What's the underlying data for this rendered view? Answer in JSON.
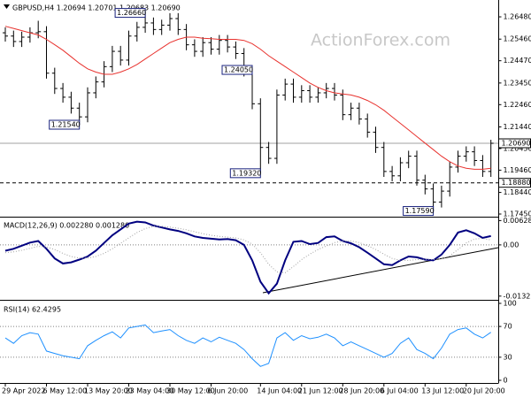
{
  "chart_data": [
    {
      "type": "ohlc",
      "title": "GBPUSD,H4 1.20694 1.20701 1.20683 1.20690",
      "watermark": "ActionForex.com",
      "color": "#000000",
      "open": [
        1.2575,
        1.256,
        1.2535,
        1.2555,
        1.2575,
        1.258,
        1.239,
        1.232,
        1.228,
        1.223,
        1.219,
        1.23,
        1.235,
        1.242,
        1.249,
        1.245,
        1.256,
        1.26,
        1.262,
        1.259,
        1.261,
        1.264,
        1.259,
        1.252,
        1.249,
        1.253,
        1.25,
        1.254,
        1.251,
        1.248,
        1.24,
        1.225,
        1.205,
        1.2,
        1.229,
        1.234,
        1.228,
        1.231,
        1.228,
        1.23,
        1.232,
        1.229,
        1.22,
        1.223,
        1.218,
        1.212,
        1.205,
        1.194,
        1.192,
        1.198,
        1.201,
        1.19,
        1.186,
        1.18,
        1.185,
        1.196,
        1.201,
        1.203,
        1.199,
        1.194
      ],
      "high": [
        1.26,
        1.2585,
        1.258,
        1.26,
        1.263,
        1.2605,
        1.2415,
        1.2345,
        1.2305,
        1.2255,
        1.2325,
        1.2375,
        1.2445,
        1.2515,
        1.2515,
        1.2585,
        1.2625,
        1.2666,
        1.2645,
        1.2635,
        1.2665,
        1.2665,
        1.2615,
        1.2545,
        1.2555,
        1.2555,
        1.2565,
        1.2565,
        1.2535,
        1.2505,
        1.2405,
        1.2275,
        1.2075,
        1.2315,
        1.2365,
        1.2365,
        1.2335,
        1.2335,
        1.2325,
        1.2345,
        1.2345,
        1.2315,
        1.2255,
        1.2255,
        1.2205,
        1.2145,
        1.2075,
        1.1965,
        1.2005,
        1.2035,
        1.2035,
        1.1925,
        1.1885,
        1.1875,
        1.1985,
        1.2035,
        1.2055,
        1.2055,
        1.2015,
        1.2085
      ],
      "low": [
        1.2535,
        1.251,
        1.251,
        1.253,
        1.255,
        1.2365,
        1.2295,
        1.2255,
        1.2205,
        1.2154,
        1.2165,
        1.2275,
        1.2325,
        1.2395,
        1.2425,
        1.2425,
        1.2535,
        1.2575,
        1.2565,
        1.2565,
        1.2585,
        1.2565,
        1.2495,
        1.2465,
        1.2465,
        1.2475,
        1.2475,
        1.2485,
        1.2455,
        1.2375,
        1.2225,
        1.1932,
        1.1975,
        1.1975,
        1.2265,
        1.2255,
        1.2255,
        1.2255,
        1.2255,
        1.2275,
        1.2265,
        1.2175,
        1.2175,
        1.2155,
        1.2095,
        1.2025,
        1.1915,
        1.1895,
        1.1895,
        1.1955,
        1.1875,
        1.1835,
        1.1759,
        1.1775,
        1.1825,
        1.1935,
        1.1985,
        1.1965,
        1.1915,
        1.1915
      ],
      "close": [
        1.256,
        1.2535,
        1.2555,
        1.2575,
        1.258,
        1.239,
        1.232,
        1.228,
        1.223,
        1.219,
        1.23,
        1.235,
        1.242,
        1.249,
        1.245,
        1.256,
        1.26,
        1.262,
        1.259,
        1.261,
        1.264,
        1.259,
        1.252,
        1.249,
        1.253,
        1.25,
        1.254,
        1.251,
        1.248,
        1.24,
        1.225,
        1.205,
        1.2,
        1.229,
        1.234,
        1.228,
        1.231,
        1.228,
        1.23,
        1.232,
        1.229,
        1.22,
        1.223,
        1.218,
        1.212,
        1.205,
        1.194,
        1.192,
        1.198,
        1.201,
        1.19,
        1.186,
        1.18,
        1.185,
        1.196,
        1.201,
        1.203,
        1.199,
        1.194,
        1.2069
      ],
      "overlays": [
        {
          "color": "#e8322e",
          "values": [
            1.2605,
            1.2595,
            1.2585,
            1.2575,
            1.2565,
            1.2545,
            1.252,
            1.2495,
            1.2465,
            1.2435,
            1.241,
            1.2395,
            1.2385,
            1.2385,
            1.2395,
            1.241,
            1.243,
            1.2455,
            1.248,
            1.2505,
            1.253,
            1.2545,
            1.2555,
            1.2555,
            1.255,
            1.2548,
            1.2545,
            1.2545,
            1.2545,
            1.254,
            1.2525,
            1.25,
            1.247,
            1.2445,
            1.242,
            1.2395,
            1.237,
            1.2345,
            1.2325,
            1.231,
            1.23,
            1.2295,
            1.229,
            1.228,
            1.2265,
            1.2245,
            1.222,
            1.219,
            1.216,
            1.213,
            1.21,
            1.207,
            1.204,
            1.201,
            1.1985,
            1.1965,
            1.1955,
            1.195,
            1.195,
            1.1955
          ]
        }
      ],
      "ylim": [
        1.1741,
        1.2717
      ],
      "yticks": [
        {
          "value": 1.2648,
          "label": "1.26480"
        },
        {
          "value": 1.2546,
          "label": "1.25460"
        },
        {
          "value": 1.2447,
          "label": "1.24470"
        },
        {
          "value": 1.2345,
          "label": "1.23450"
        },
        {
          "value": 1.2246,
          "label": "1.22460"
        },
        {
          "value": 1.2144,
          "label": "1.21440"
        },
        {
          "value": 1.2045,
          "label": "1.20450"
        },
        {
          "value": 1.1946,
          "label": "1.19460"
        },
        {
          "value": 1.1844,
          "label": "1.18440"
        },
        {
          "value": 1.1745,
          "label": "1.17450"
        }
      ],
      "levels": [
        {
          "value": 1.2069,
          "label": "1.20690",
          "color": "#a0a0a0",
          "style": "solid"
        },
        {
          "value": 1.1888,
          "label": "1.18880",
          "color": "#000000",
          "style": "dashed"
        }
      ],
      "annotations": [
        {
          "value": 1.2666,
          "label": "1.26660"
        },
        {
          "value": 1.2405,
          "label": "1.24050"
        },
        {
          "value": 1.2154,
          "label": "1.21540"
        },
        {
          "value": 1.1932,
          "label": "1.19320"
        },
        {
          "value": 1.1759,
          "label": "1.17590"
        }
      ]
    },
    {
      "type": "line",
      "title": "MACD(12,26,9) 0.002280 0.001280",
      "grid": true,
      "series": [
        {
          "color": "#000080",
          "style": "solid",
          "values": [
            -0.0015,
            -0.001,
            -0.0002,
            0.0006,
            0.001,
            -0.001,
            -0.0035,
            -0.0048,
            -0.0045,
            -0.0038,
            -0.003,
            -0.0015,
            0.0005,
            0.0025,
            0.004,
            0.0055,
            0.006,
            0.0058,
            0.005,
            0.0045,
            0.004,
            0.0036,
            0.003,
            0.0022,
            0.0018,
            0.0016,
            0.0014,
            0.0015,
            0.0012,
            0.0,
            -0.004,
            -0.0095,
            -0.0125,
            -0.01,
            -0.004,
            0.0008,
            0.001,
            0.0002,
            0.0005,
            0.002,
            0.0022,
            0.001,
            0.0004,
            -0.0006,
            -0.002,
            -0.0035,
            -0.005,
            -0.0052,
            -0.004,
            -0.003,
            -0.0032,
            -0.0038,
            -0.004,
            -0.0025,
            0.0,
            0.0032,
            0.0038,
            0.003,
            0.0018,
            0.00228
          ]
        },
        {
          "color": "#a0a0a0",
          "style": "dotted",
          "values": [
            -0.002,
            -0.0018,
            -0.0014,
            -0.0009,
            -0.0004,
            -0.0005,
            -0.0012,
            -0.0022,
            -0.003,
            -0.0034,
            -0.0034,
            -0.003,
            -0.0022,
            -0.001,
            0.0004,
            0.0018,
            0.0032,
            0.0042,
            0.0048,
            0.0048,
            0.0046,
            0.0043,
            0.0039,
            0.0034,
            0.0029,
            0.0025,
            0.0022,
            0.002,
            0.0018,
            0.0013,
            0.0002,
            -0.002,
            -0.005,
            -0.007,
            -0.0072,
            -0.0056,
            -0.0038,
            -0.0024,
            -0.0012,
            -0.0003,
            0.0006,
            0.001,
            0.001,
            0.0006,
            -0.0002,
            -0.0012,
            -0.0024,
            -0.0035,
            -0.004,
            -0.004,
            -0.0038,
            -0.0037,
            -0.0038,
            -0.0036,
            -0.0028,
            -0.0012,
            0.0005,
            0.0015,
            0.0017,
            0.00128
          ]
        }
      ],
      "ylim": [
        -0.0135,
        0.0066
      ],
      "yticks": [
        0.006285,
        {
          "value": 0,
          "label": "0.00"
        },
        -0.013223
      ]
    },
    {
      "type": "line",
      "title": "RSI(14) 62.4295",
      "grid": true,
      "series": [
        {
          "color": "#1e90ff",
          "style": "solid",
          "values": [
            55,
            48,
            58,
            62,
            60,
            38,
            35,
            32,
            30,
            28,
            45,
            52,
            58,
            63,
            55,
            68,
            70,
            72,
            62,
            64,
            66,
            58,
            52,
            48,
            55,
            50,
            56,
            52,
            48,
            40,
            28,
            18,
            22,
            55,
            62,
            52,
            58,
            54,
            56,
            60,
            55,
            45,
            50,
            45,
            40,
            35,
            30,
            35,
            48,
            55,
            40,
            35,
            28,
            42,
            60,
            66,
            68,
            60,
            55,
            62.4295
          ]
        }
      ],
      "ylim": [
        0,
        100
      ],
      "yticks": [
        100,
        70,
        30,
        0
      ],
      "categories": [
        "29 Apr 2022",
        null,
        null,
        null,
        null,
        "6 May 12:00",
        null,
        null,
        null,
        null,
        "13 May 20:00",
        null,
        null,
        null,
        null,
        "23 May 04:00",
        null,
        null,
        null,
        null,
        "30 May 12:00",
        null,
        null,
        null,
        null,
        "6 Jun 20:00",
        null,
        null,
        null,
        null,
        null,
        "14 Jun 04:00",
        null,
        null,
        null,
        null,
        "21 Jun 12:00",
        null,
        null,
        null,
        null,
        "28 Jun 20:00",
        null,
        null,
        null,
        null,
        "6 Jul 04:00",
        null,
        null,
        null,
        null,
        "13 Jul 12:00",
        null,
        null,
        null,
        null,
        "20 Jul 20:00",
        null,
        null,
        null
      ]
    }
  ]
}
